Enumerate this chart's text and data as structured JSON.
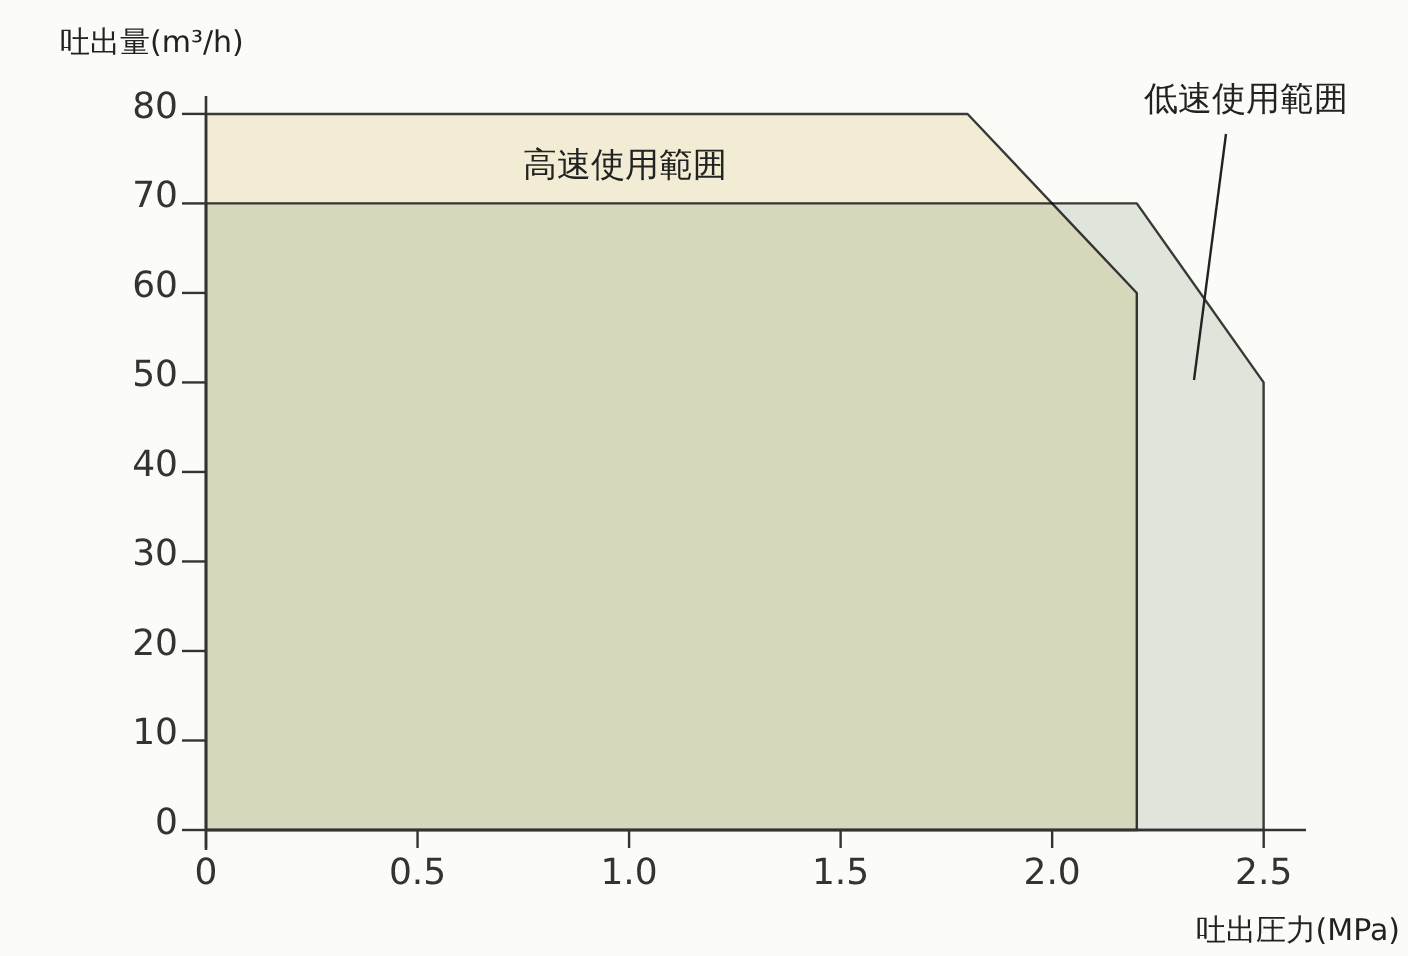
{
  "chart_data": {
    "type": "area",
    "xlabel": "吐出圧力(MPa)",
    "ylabel": "吐出量(m³/h)",
    "series": [
      {
        "name": "高速使用範囲",
        "color": "#f1eacb",
        "x": [
          0,
          1.8,
          2.2,
          2.2
        ],
        "values": [
          80,
          80,
          60,
          0
        ]
      },
      {
        "name": "低速使用範囲",
        "color": "#d9e0d8",
        "x": [
          0,
          2.2,
          2.5,
          2.5
        ],
        "values": [
          70,
          70,
          50,
          0
        ]
      }
    ],
    "xlim": [
      0,
      2.6
    ],
    "ylim": [
      0,
      82
    ],
    "xticks": [
      0,
      {
        "value": 0.5,
        "label": "0.5"
      },
      {
        "value": 1,
        "label": "1.0"
      },
      1.5,
      {
        "value": 2,
        "label": "2.0"
      },
      2.5
    ],
    "yticks": [
      0,
      10,
      20,
      30,
      40,
      50,
      60,
      70,
      80
    ]
  }
}
